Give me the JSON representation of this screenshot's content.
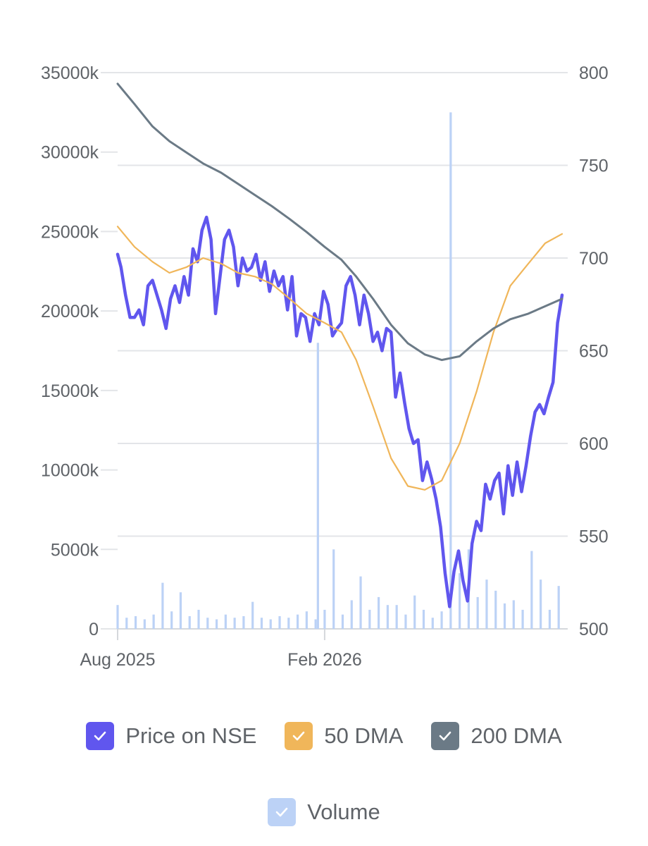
{
  "legend": {
    "price": {
      "label": "Price on NSE",
      "color": "#6056ee",
      "icon": "check-icon"
    },
    "dma50": {
      "label": "50 DMA",
      "color": "#f0b65a",
      "icon": "check-icon"
    },
    "dma200": {
      "label": "200 DMA",
      "color": "#6b7a86",
      "icon": "check-icon"
    },
    "volume": {
      "label": "Volume",
      "color": "#bcd2f6",
      "icon": "check-icon"
    }
  },
  "chart_data": {
    "type": "line",
    "x_labels": [
      "Aug 2025",
      "Feb 2026"
    ],
    "x_range": [
      "2025-08-01",
      "2026-08-31"
    ],
    "y_left": {
      "ticks": [
        0,
        5000,
        10000,
        15000,
        20000,
        25000,
        30000,
        35000
      ],
      "labels": [
        "0",
        "5000k",
        "10000k",
        "15000k",
        "20000k",
        "25000k",
        "30000k",
        "35000k"
      ],
      "range": [
        0,
        35000
      ],
      "unit": "thousand shares"
    },
    "y_right": {
      "ticks": [
        500,
        550,
        600,
        650,
        700,
        750,
        800
      ],
      "labels": [
        "500",
        "550",
        "600",
        "650",
        "700",
        "750",
        "800"
      ],
      "range": [
        500,
        800
      ]
    },
    "grid": true,
    "legend_position": "bottom",
    "series": [
      {
        "name": "Price on NSE",
        "axis": "right",
        "color": "#6056ee",
        "x": [
          "2025-08-01",
          "2025-08-04",
          "2025-08-08",
          "2025-08-12",
          "2025-08-16",
          "2025-08-20",
          "2025-08-24",
          "2025-08-28",
          "2025-09-01",
          "2025-09-05",
          "2025-09-09",
          "2025-09-13",
          "2025-09-17",
          "2025-09-21",
          "2025-09-25",
          "2025-09-29",
          "2025-10-03",
          "2025-10-07",
          "2025-10-11",
          "2025-10-15",
          "2025-10-19",
          "2025-10-23",
          "2025-10-27",
          "2025-10-31",
          "2025-11-04",
          "2025-11-08",
          "2025-11-12",
          "2025-11-16",
          "2025-11-20",
          "2025-11-24",
          "2025-11-28",
          "2025-12-02",
          "2025-12-06",
          "2025-12-10",
          "2025-12-14",
          "2025-12-18",
          "2025-12-22",
          "2025-12-26",
          "2025-12-30",
          "2026-01-03",
          "2026-01-07",
          "2026-01-11",
          "2026-01-15",
          "2026-01-19",
          "2026-01-23",
          "2026-01-27",
          "2026-01-31",
          "2026-02-04",
          "2026-02-08",
          "2026-02-12",
          "2026-02-16",
          "2026-02-20",
          "2026-02-24",
          "2026-02-28",
          "2026-03-04",
          "2026-03-08",
          "2026-03-12",
          "2026-03-16",
          "2026-03-20",
          "2026-03-24",
          "2026-03-28",
          "2026-04-01",
          "2026-04-05",
          "2026-04-09",
          "2026-04-13",
          "2026-04-17",
          "2026-04-21",
          "2026-04-25",
          "2026-04-29",
          "2026-05-03",
          "2026-05-07",
          "2026-05-11",
          "2026-05-15",
          "2026-05-19",
          "2026-05-23",
          "2026-05-27",
          "2026-05-31",
          "2026-06-04",
          "2026-06-08",
          "2026-06-12",
          "2026-06-16",
          "2026-06-20",
          "2026-06-24",
          "2026-06-28",
          "2026-07-02",
          "2026-07-06",
          "2026-07-10",
          "2026-07-14",
          "2026-07-18",
          "2026-07-22",
          "2026-07-26",
          "2026-07-30",
          "2026-08-03",
          "2026-08-07",
          "2026-08-11",
          "2026-08-15",
          "2026-08-19",
          "2026-08-23",
          "2026-08-27",
          "2026-08-31"
        ],
        "y": [
          702,
          695,
          680,
          668,
          668,
          672,
          664,
          685,
          688,
          680,
          672,
          662,
          678,
          685,
          676,
          690,
          680,
          705,
          698,
          715,
          722,
          710,
          670,
          690,
          710,
          715,
          706,
          685,
          700,
          693,
          695,
          702,
          688,
          698,
          682,
          693,
          685,
          690,
          672,
          690,
          658,
          670,
          668,
          655,
          670,
          664,
          682,
          675,
          658,
          662,
          665,
          685,
          690,
          680,
          664,
          680,
          670,
          655,
          660,
          650,
          662,
          660,
          625,
          638,
          622,
          608,
          600,
          602,
          580,
          590,
          581,
          570,
          555,
          530,
          512,
          531,
          542,
          526,
          515,
          546,
          558,
          553,
          578,
          570,
          580,
          584,
          562,
          588,
          572,
          590,
          574,
          588,
          604,
          617,
          621,
          616,
          625,
          633,
          665,
          680
        ]
      },
      {
        "name": "50 DMA",
        "axis": "right",
        "color": "#f0b65a",
        "x": [
          "2025-08-01",
          "2025-08-16",
          "2025-09-01",
          "2025-09-16",
          "2025-10-01",
          "2025-10-16",
          "2025-11-01",
          "2025-11-16",
          "2025-12-01",
          "2025-12-16",
          "2026-01-01",
          "2026-01-16",
          "2026-02-01",
          "2026-02-16",
          "2026-03-01",
          "2026-03-16",
          "2026-04-01",
          "2026-04-16",
          "2026-05-01",
          "2026-05-16",
          "2026-06-01",
          "2026-06-16",
          "2026-07-01",
          "2026-07-16",
          "2026-08-01",
          "2026-08-16",
          "2026-08-31"
        ],
        "y": [
          717,
          706,
          698,
          692,
          695,
          700,
          697,
          692,
          690,
          686,
          678,
          670,
          665,
          660,
          645,
          620,
          592,
          577,
          575,
          580,
          600,
          628,
          660,
          685,
          697,
          708,
          713
        ]
      },
      {
        "name": "200 DMA",
        "axis": "right",
        "color": "#6b7a86",
        "x": [
          "2025-08-01",
          "2025-08-16",
          "2025-09-01",
          "2025-09-16",
          "2025-10-01",
          "2025-10-16",
          "2025-11-01",
          "2025-11-16",
          "2025-12-01",
          "2025-12-16",
          "2026-01-01",
          "2026-01-16",
          "2026-02-01",
          "2026-02-16",
          "2026-03-01",
          "2026-03-16",
          "2026-04-01",
          "2026-04-16",
          "2026-05-01",
          "2026-05-16",
          "2026-06-01",
          "2026-06-16",
          "2026-07-01",
          "2026-07-16",
          "2026-08-01",
          "2026-08-16",
          "2026-08-31"
        ],
        "y": [
          794,
          783,
          771,
          763,
          757,
          751,
          746,
          740,
          734,
          728,
          721,
          714,
          706,
          699,
          690,
          678,
          664,
          654,
          648,
          645,
          647,
          655,
          662,
          667,
          670,
          674,
          678
        ]
      },
      {
        "name": "Volume",
        "axis": "left",
        "type": "bar",
        "color": "#bcd2f6",
        "x": [
          "2025-08-01",
          "2025-08-09",
          "2025-08-17",
          "2025-08-25",
          "2025-09-02",
          "2025-09-10",
          "2025-09-18",
          "2025-09-26",
          "2025-10-04",
          "2025-10-12",
          "2025-10-20",
          "2025-10-28",
          "2025-11-05",
          "2025-11-13",
          "2025-11-21",
          "2025-11-29",
          "2025-12-07",
          "2025-12-15",
          "2025-12-23",
          "2025-12-31",
          "2026-01-08",
          "2026-01-16",
          "2026-01-24",
          "2026-01-26",
          "2026-02-01",
          "2026-02-09",
          "2026-02-17",
          "2026-02-25",
          "2026-03-05",
          "2026-03-13",
          "2026-03-21",
          "2026-03-29",
          "2026-04-06",
          "2026-04-14",
          "2026-04-22",
          "2026-04-30",
          "2026-05-08",
          "2026-05-16",
          "2026-05-24",
          "2026-06-01",
          "2026-06-09",
          "2026-06-17",
          "2026-06-25",
          "2026-07-03",
          "2026-07-11",
          "2026-07-19",
          "2026-07-27",
          "2026-08-04",
          "2026-08-12",
          "2026-08-20",
          "2026-08-28"
        ],
        "y": [
          1500,
          700,
          800,
          600,
          900,
          2900,
          1100,
          2300,
          800,
          1200,
          700,
          600,
          900,
          700,
          800,
          1700,
          700,
          600,
          800,
          700,
          900,
          1100,
          600,
          18000,
          1200,
          5000,
          900,
          1800,
          3300,
          1200,
          2000,
          1500,
          1500,
          900,
          2100,
          1200,
          700,
          1100,
          32500,
          3500,
          5000,
          2000,
          3100,
          2400,
          1600,
          1800,
          1200,
          4900,
          3100,
          1200,
          2700
        ]
      }
    ]
  }
}
